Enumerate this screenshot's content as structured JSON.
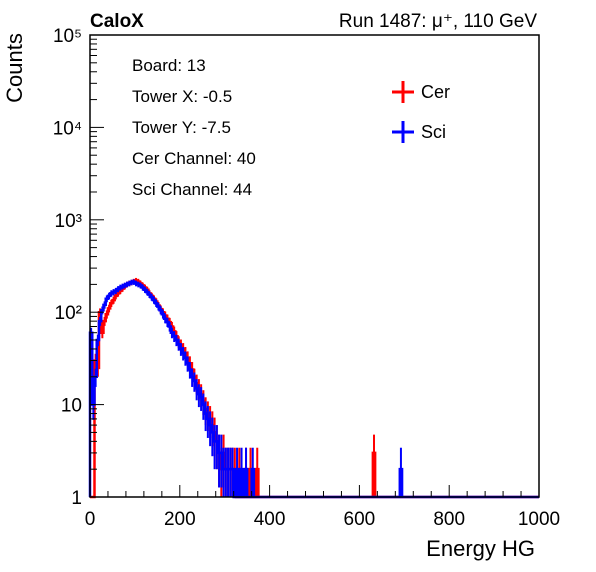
{
  "header": {
    "experiment": "CaloX",
    "run_info": "Run 1487:   μ⁺, 110 GeV"
  },
  "info_box": {
    "lines": [
      "Board: 13",
      "Tower X: -0.5",
      "Tower Y: -7.5",
      "Cer Channel: 40",
      "Sci Channel: 44"
    ]
  },
  "chart_data": {
    "type": "line",
    "title": "",
    "xlabel": "Energy HG",
    "ylabel": "Counts",
    "xlim": [
      0,
      1000
    ],
    "ylim": [
      1,
      100000
    ],
    "y_scale": "log",
    "x_ticks": [
      0,
      200,
      400,
      600,
      800,
      1000
    ],
    "y_ticks": [
      {
        "value": 1,
        "label": "1"
      },
      {
        "value": 10,
        "label": "10"
      },
      {
        "value": 100,
        "label": "10²"
      },
      {
        "value": 1000,
        "label": "10³"
      },
      {
        "value": 10000,
        "label": "10⁴"
      },
      {
        "value": 100000,
        "label": "10⁵"
      }
    ],
    "grid": false,
    "legend_position": "top-right",
    "bin_width": 5,
    "series": [
      {
        "name": "Cer",
        "color": "#ff0000",
        "bins": [
          [
            10,
            30
          ],
          [
            15,
            25
          ],
          [
            20,
            40
          ],
          [
            25,
            60
          ],
          [
            30,
            80
          ],
          [
            35,
            95
          ],
          [
            40,
            110
          ],
          [
            45,
            125
          ],
          [
            50,
            135
          ],
          [
            55,
            150
          ],
          [
            60,
            160
          ],
          [
            65,
            170
          ],
          [
            70,
            180
          ],
          [
            75,
            190
          ],
          [
            80,
            200
          ],
          [
            85,
            205
          ],
          [
            90,
            210
          ],
          [
            95,
            215
          ],
          [
            100,
            220
          ],
          [
            105,
            215
          ],
          [
            110,
            205
          ],
          [
            115,
            195
          ],
          [
            120,
            185
          ],
          [
            125,
            175
          ],
          [
            130,
            160
          ],
          [
            135,
            150
          ],
          [
            140,
            140
          ],
          [
            145,
            130
          ],
          [
            150,
            118
          ],
          [
            155,
            108
          ],
          [
            160,
            100
          ],
          [
            165,
            92
          ],
          [
            170,
            85
          ],
          [
            175,
            78
          ],
          [
            180,
            70
          ],
          [
            185,
            62
          ],
          [
            190,
            55
          ],
          [
            195,
            48
          ],
          [
            200,
            44
          ],
          [
            205,
            40
          ],
          [
            210,
            36
          ],
          [
            215,
            32
          ],
          [
            220,
            28
          ],
          [
            225,
            24
          ],
          [
            230,
            20
          ],
          [
            235,
            17
          ],
          [
            240,
            15
          ],
          [
            245,
            13
          ],
          [
            250,
            11
          ],
          [
            255,
            9
          ],
          [
            260,
            8
          ],
          [
            265,
            7
          ],
          [
            270,
            6
          ],
          [
            275,
            5
          ],
          [
            280,
            4
          ],
          [
            285,
            3
          ],
          [
            290,
            2
          ],
          [
            295,
            3
          ],
          [
            300,
            2
          ],
          [
            305,
            2
          ],
          [
            310,
            2
          ],
          [
            315,
            2
          ],
          [
            320,
            2
          ],
          [
            330,
            2
          ],
          [
            345,
            2
          ],
          [
            355,
            2
          ],
          [
            370,
            2
          ],
          [
            630,
            3
          ]
        ],
        "spike_bins": [
          [
            20,
            100
          ]
        ]
      },
      {
        "name": "Sci",
        "color": "#0000ff",
        "bins": [
          [
            0,
            40
          ],
          [
            5,
            10
          ],
          [
            10,
            20
          ],
          [
            15,
            50
          ],
          [
            20,
            80
          ],
          [
            25,
            105
          ],
          [
            30,
            120
          ],
          [
            35,
            140
          ],
          [
            40,
            150
          ],
          [
            45,
            160
          ],
          [
            50,
            165
          ],
          [
            55,
            170
          ],
          [
            60,
            178
          ],
          [
            65,
            185
          ],
          [
            70,
            190
          ],
          [
            75,
            195
          ],
          [
            80,
            200
          ],
          [
            85,
            205
          ],
          [
            90,
            210
          ],
          [
            95,
            212
          ],
          [
            100,
            205
          ],
          [
            105,
            200
          ],
          [
            110,
            195
          ],
          [
            115,
            185
          ],
          [
            120,
            175
          ],
          [
            125,
            165
          ],
          [
            130,
            155
          ],
          [
            135,
            145
          ],
          [
            140,
            135
          ],
          [
            145,
            125
          ],
          [
            150,
            115
          ],
          [
            155,
            105
          ],
          [
            160,
            95
          ],
          [
            165,
            85
          ],
          [
            170,
            78
          ],
          [
            175,
            70
          ],
          [
            180,
            60
          ],
          [
            185,
            55
          ],
          [
            190,
            50
          ],
          [
            195,
            45
          ],
          [
            200,
            40
          ],
          [
            205,
            36
          ],
          [
            210,
            32
          ],
          [
            215,
            28
          ],
          [
            220,
            24
          ],
          [
            225,
            20
          ],
          [
            230,
            18
          ],
          [
            235,
            15
          ],
          [
            240,
            13
          ],
          [
            245,
            12
          ],
          [
            250,
            10
          ],
          [
            255,
            8
          ],
          [
            260,
            7
          ],
          [
            265,
            6
          ],
          [
            270,
            5
          ],
          [
            275,
            4
          ],
          [
            280,
            4
          ],
          [
            285,
            3
          ],
          [
            290,
            3
          ],
          [
            295,
            2
          ],
          [
            300,
            2
          ],
          [
            305,
            2
          ],
          [
            310,
            2
          ],
          [
            315,
            2
          ],
          [
            325,
            2
          ],
          [
            335,
            2
          ],
          [
            345,
            2
          ],
          [
            360,
            2
          ],
          [
            690,
            2
          ]
        ],
        "spike_bins": [
          [
            0,
            60
          ]
        ]
      }
    ]
  }
}
